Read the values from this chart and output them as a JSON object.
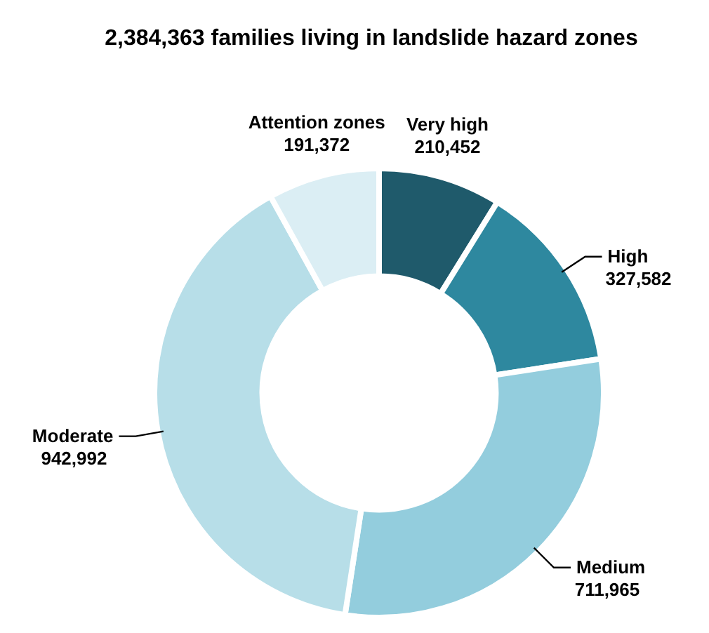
{
  "chart_data": {
    "type": "donut",
    "title": "2,384,363 families living in landslide hazard zones",
    "categories": [
      "Very high",
      "High",
      "Medium",
      "Moderate",
      "Attention zones"
    ],
    "values": [
      210452,
      327582,
      711965,
      942992,
      191372
    ],
    "colors": [
      "#1f5a6b",
      "#2e889f",
      "#93cddd",
      "#b7dee8",
      "#dbeef4"
    ],
    "value_labels": [
      "210,452",
      "327,582",
      "711,965",
      "942,992",
      "191,372"
    ],
    "legend": false
  }
}
